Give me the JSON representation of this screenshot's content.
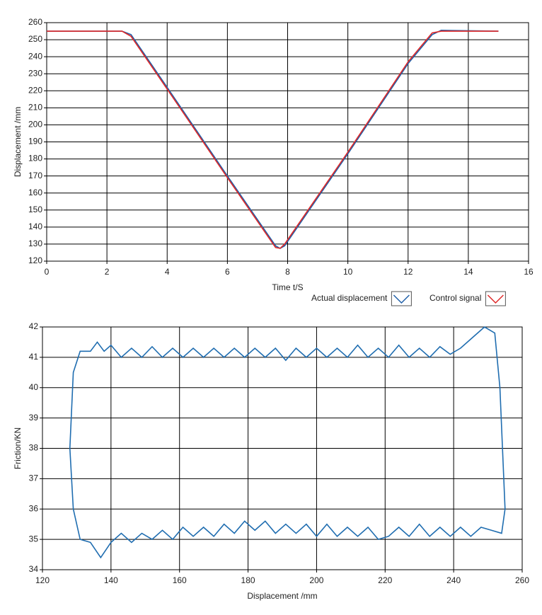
{
  "chart_data": [
    {
      "type": "line",
      "xlabel": "Time t/S",
      "ylabel": "Displacement /mm",
      "x": [
        0,
        2.5,
        2.8,
        4,
        6,
        7.6,
        7.75,
        7.9,
        10,
        12,
        12.8,
        13.1,
        15
      ],
      "series": [
        {
          "name": "Actual displacement",
          "color": "#1f5fa8",
          "values": [
            255,
            255,
            253,
            222,
            170,
            129,
            127.5,
            129,
            183,
            236,
            253,
            255.5,
            255
          ]
        },
        {
          "name": "Control signal",
          "color": "#e02828",
          "values": [
            255,
            255,
            252,
            221,
            169,
            128,
            127.5,
            130,
            184,
            237,
            254,
            255,
            255
          ]
        }
      ],
      "xlim": [
        0,
        16
      ],
      "xticks": [
        0,
        2,
        4,
        6,
        8,
        10,
        12,
        14,
        16
      ],
      "ylim": [
        120,
        260
      ],
      "yticks": [
        120,
        130,
        140,
        150,
        160,
        170,
        180,
        190,
        200,
        210,
        220,
        230,
        240,
        250,
        260
      ],
      "grid": true,
      "legend": "bottom-right"
    },
    {
      "type": "line",
      "xlabel": "Displacement /mm",
      "ylabel": "Friction/KN",
      "x": [
        128,
        129,
        131,
        134,
        136,
        138,
        140,
        143,
        146,
        149,
        152,
        155,
        158,
        161,
        164,
        167,
        170,
        173,
        176,
        179,
        182,
        185,
        188,
        191,
        194,
        197,
        200,
        203,
        206,
        209,
        212,
        215,
        218,
        221,
        224,
        227,
        230,
        233,
        236,
        239,
        242,
        245,
        249,
        252,
        253.5,
        255,
        254,
        251,
        248,
        245,
        242,
        239,
        236,
        233,
        230,
        227,
        224,
        221,
        218,
        215,
        212,
        209,
        206,
        203,
        200,
        197,
        194,
        191,
        188,
        185,
        182,
        179,
        176,
        173,
        170,
        167,
        164,
        161,
        158,
        155,
        152,
        149,
        146,
        143,
        140,
        137,
        134,
        131,
        129,
        128
      ],
      "series": [
        {
          "name": "Friction",
          "color": "#1f6db0",
          "values": [
            38,
            40.5,
            41.2,
            41.2,
            41.5,
            41.2,
            41.4,
            41.0,
            41.3,
            41.0,
            41.35,
            41.0,
            41.3,
            41.0,
            41.3,
            41.0,
            41.3,
            41.0,
            41.3,
            41.0,
            41.3,
            41.0,
            41.3,
            40.9,
            41.3,
            41.0,
            41.3,
            41.0,
            41.3,
            41.0,
            41.4,
            41.0,
            41.3,
            41.0,
            41.4,
            41.0,
            41.3,
            41.0,
            41.35,
            41.1,
            41.3,
            41.6,
            42.0,
            41.8,
            40,
            36,
            35.2,
            35.3,
            35.4,
            35.1,
            35.4,
            35.1,
            35.4,
            35.1,
            35.5,
            35.1,
            35.4,
            35.1,
            35.0,
            35.4,
            35.1,
            35.4,
            35.1,
            35.5,
            35.1,
            35.5,
            35.2,
            35.5,
            35.2,
            35.6,
            35.3,
            35.6,
            35.2,
            35.5,
            35.1,
            35.4,
            35.1,
            35.4,
            35.0,
            35.3,
            35.0,
            35.2,
            34.9,
            35.2,
            34.9,
            34.4,
            34.9,
            35.0,
            36,
            38
          ]
        }
      ],
      "xlim": [
        120,
        260
      ],
      "xticks": [
        120,
        140,
        160,
        180,
        200,
        220,
        240,
        260
      ],
      "ylim": [
        34,
        42
      ],
      "yticks": [
        34,
        35,
        36,
        37,
        38,
        39,
        40,
        41,
        42
      ],
      "grid": true
    }
  ]
}
